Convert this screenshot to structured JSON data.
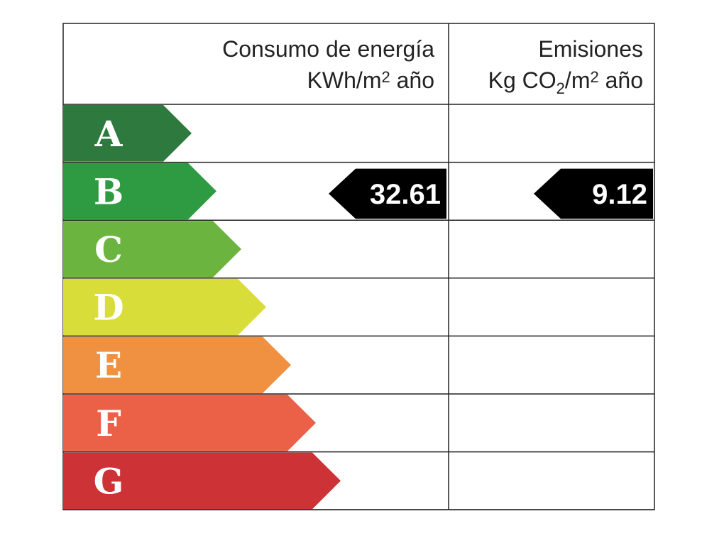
{
  "header": {
    "consumption": {
      "line1": "Consumo de energía",
      "line2": [
        "KWh/m",
        "2",
        " año"
      ]
    },
    "emissions": {
      "line1": "Emisiones",
      "line2": [
        "Kg CO",
        "2",
        "/m",
        "2",
        " año"
      ]
    }
  },
  "rows": [
    {
      "letter": "A",
      "color": "#2e7a3e"
    },
    {
      "letter": "B",
      "color": "#2e9b42",
      "consumption": 32.61,
      "emissions": 9.12
    },
    {
      "letter": "C",
      "color": "#6ab43f"
    },
    {
      "letter": "D",
      "color": "#d9dd3a"
    },
    {
      "letter": "E",
      "color": "#ef9140"
    },
    {
      "letter": "F",
      "color": "#ea6148"
    },
    {
      "letter": "G",
      "color": "#cc3236"
    }
  ]
}
